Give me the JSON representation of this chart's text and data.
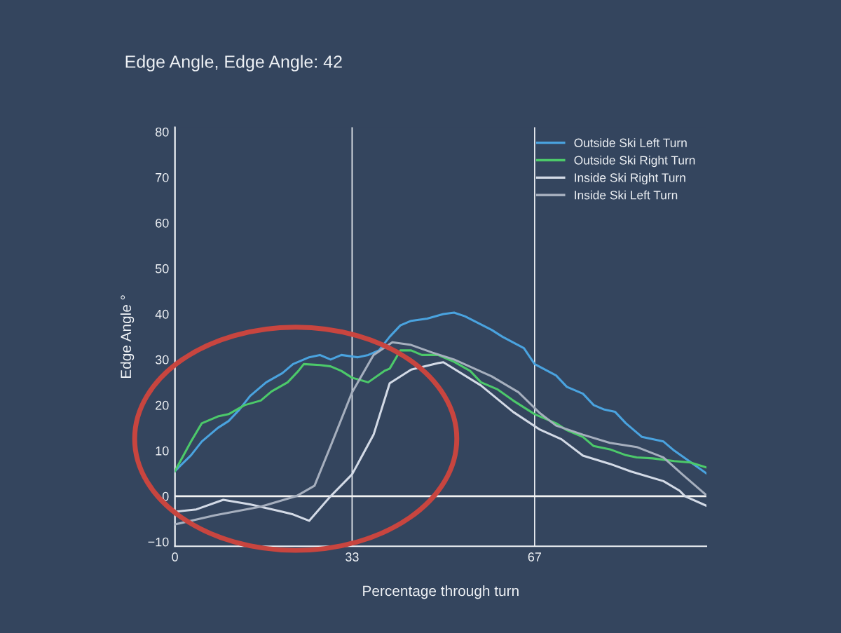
{
  "chart_data": {
    "type": "line",
    "title": "Edge Angle, Edge Angle: 42",
    "xlabel": "Percentage through turn",
    "ylabel": "Edge Angle °",
    "xlim": [
      0,
      99
    ],
    "xticks": [
      0,
      33,
      67
    ],
    "ylim": [
      -11,
      81
    ],
    "yticks": [
      {
        "value": -10,
        "label": "−10"
      },
      0,
      10,
      20,
      30,
      40,
      50,
      60,
      70,
      80
    ],
    "grid": "x",
    "legend": "top right",
    "marker": "none",
    "line_style": "solid",
    "ref_lines": [
      {
        "axis": "y",
        "value": 0,
        "color": "#f2f2f2"
      }
    ],
    "series": [
      {
        "name": "Outside Ski Left Turn",
        "color": "#4aa3df",
        "x": [
          0,
          3,
          5,
          8,
          10,
          12,
          14,
          17,
          20,
          22,
          25,
          27,
          29,
          31,
          34,
          36,
          38,
          40,
          42,
          44,
          47,
          50,
          52,
          54,
          59,
          61,
          65,
          67,
          71,
          73,
          76,
          78,
          80,
          82,
          84,
          87,
          89,
          91,
          93,
          96,
          99
        ],
        "values": [
          5.5,
          9,
          12,
          15,
          16.5,
          19,
          22,
          25,
          27,
          29,
          30.5,
          31,
          30,
          31,
          30.5,
          31,
          32,
          35,
          37.5,
          38.5,
          39,
          40,
          40.3,
          39.5,
          36.5,
          35,
          32.5,
          29,
          26.5,
          24,
          22.5,
          20,
          19,
          18.5,
          16,
          13,
          12.5,
          12,
          10,
          7.5,
          5
        ]
      },
      {
        "name": "Outside Ski Right Turn",
        "color": "#4cc96a",
        "x": [
          0,
          3,
          5,
          8,
          10,
          13,
          16,
          18,
          21,
          23,
          24,
          27,
          29,
          31,
          33,
          36,
          39,
          40,
          42,
          44,
          46,
          49,
          52,
          55,
          57,
          60,
          63,
          67,
          71,
          73,
          76,
          78,
          81,
          84,
          86,
          89,
          93,
          96,
          99
        ],
        "values": [
          5.5,
          12,
          16,
          17.5,
          18,
          20,
          21,
          23,
          25,
          27.5,
          29,
          28.8,
          28.5,
          27.5,
          26,
          25,
          27.5,
          28,
          32,
          32,
          31,
          31,
          29.5,
          27.5,
          25,
          23.5,
          21,
          18,
          16,
          14.5,
          13,
          11,
          10.3,
          9,
          8.5,
          8.3,
          7.7,
          7.4,
          6.3
        ]
      },
      {
        "name": "Inside Ski Right Turn",
        "color": "#d3dae6",
        "x": [
          0,
          4,
          9,
          14,
          20,
          22,
          25,
          29,
          33,
          37,
          40,
          44,
          49,
          50,
          57,
          63,
          68,
          72,
          76,
          81,
          85,
          91,
          94,
          95,
          99
        ],
        "values": [
          -3.4,
          -2.9,
          -0.8,
          -1.8,
          -3.4,
          -4,
          -5.4,
          0,
          4.8,
          13.5,
          24.8,
          27.8,
          29.2,
          29.4,
          24.3,
          18.5,
          14.6,
          12.5,
          8.9,
          7.1,
          5.4,
          3.3,
          1.2,
          0,
          -2.1
        ]
      },
      {
        "name": "Inside Ski Left Turn",
        "color": "#a6afbe",
        "x": [
          0,
          7.5,
          16,
          22.6,
          26,
          29,
          33,
          37,
          40.5,
          44,
          48,
          52,
          59,
          64,
          68,
          71,
          76,
          81,
          86,
          91,
          94.5,
          99
        ],
        "values": [
          -6.2,
          -4.2,
          -2.3,
          0,
          2.3,
          11,
          22.8,
          31,
          33.8,
          33.2,
          31.5,
          30,
          26.3,
          22.8,
          18.2,
          15.5,
          13.5,
          11.7,
          10.8,
          8.5,
          4.8,
          0.2
        ]
      }
    ]
  }
}
